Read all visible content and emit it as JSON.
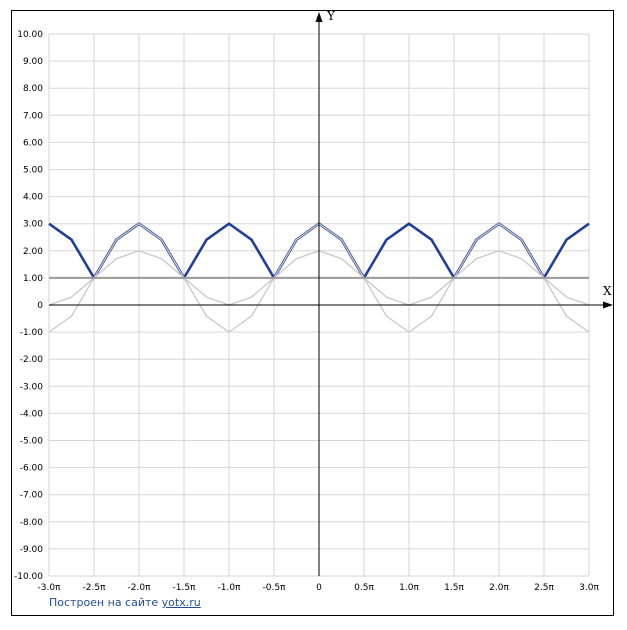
{
  "footer": {
    "prefix": "Построен на сайте",
    "link": "yotx.ru"
  },
  "chart_data": {
    "type": "line",
    "title": "",
    "xlabel": "X",
    "ylabel": "Y",
    "xlim": [
      -9.42478,
      9.42478
    ],
    "ylim": [
      -10,
      10
    ],
    "grid": true,
    "x_ticks": [
      {
        "v": -9.42478,
        "label": "-3.0π"
      },
      {
        "v": -7.85398,
        "label": "-2.5π"
      },
      {
        "v": -6.28319,
        "label": "-2.0π"
      },
      {
        "v": -4.71239,
        "label": "-1.5π"
      },
      {
        "v": -3.14159,
        "label": "-1.0π"
      },
      {
        "v": -1.5708,
        "label": "-0.5π"
      },
      {
        "v": 0,
        "label": "0"
      },
      {
        "v": 1.5708,
        "label": "0.5π"
      },
      {
        "v": 3.14159,
        "label": "1.0π"
      },
      {
        "v": 4.71239,
        "label": "1.5π"
      },
      {
        "v": 6.28319,
        "label": "2.0π"
      },
      {
        "v": 7.85398,
        "label": "2.5π"
      },
      {
        "v": 9.42478,
        "label": "3.0π"
      }
    ],
    "y_ticks": [
      {
        "v": 10,
        "label": "10.00"
      },
      {
        "v": 9,
        "label": "9.00"
      },
      {
        "v": 8,
        "label": "8.00"
      },
      {
        "v": 7,
        "label": "7.00"
      },
      {
        "v": 6,
        "label": "6.00"
      },
      {
        "v": 5,
        "label": "5.00"
      },
      {
        "v": 4,
        "label": "4.00"
      },
      {
        "v": 3,
        "label": "3.00"
      },
      {
        "v": 2,
        "label": "2.00"
      },
      {
        "v": 1,
        "label": "1.00"
      },
      {
        "v": 0,
        "label": "0"
      },
      {
        "v": -1,
        "label": "-1.00"
      },
      {
        "v": -2,
        "label": "-2.00"
      },
      {
        "v": -3,
        "label": "-3.00"
      },
      {
        "v": -4,
        "label": "-4.00"
      },
      {
        "v": -5,
        "label": "-5.00"
      },
      {
        "v": -6,
        "label": "-6.00"
      },
      {
        "v": -7,
        "label": "-7.00"
      },
      {
        "v": -8,
        "label": "-8.00"
      },
      {
        "v": -9,
        "label": "-9.00"
      },
      {
        "v": -10,
        "label": "-10.00"
      }
    ],
    "series": [
      {
        "color": "#1f3f9c",
        "x": [
          -9.42478,
          -8.63938,
          -7.85398,
          -7.06858,
          -6.28319,
          -5.49779,
          -4.71239,
          -3.92699,
          -3.14159,
          -2.35619,
          -1.5708,
          -0.7854,
          0,
          0.7854,
          1.5708,
          2.35619,
          3.14159,
          3.92699,
          4.71239,
          5.49779,
          6.28319,
          7.06858,
          7.85398,
          8.63938,
          9.42478
        ],
        "y": [
          3,
          2.41,
          1,
          2.41,
          3,
          2.41,
          1,
          2.41,
          3,
          2.41,
          1,
          2.41,
          3,
          2.41,
          1,
          2.41,
          3,
          2.41,
          1,
          2.41,
          3,
          2.41,
          1,
          2.41,
          3
        ]
      },
      {
        "color": "#c8c8c8",
        "x": [
          -9.42478,
          -8.63938,
          -7.85398,
          -7.06858,
          -6.28319,
          -5.49779,
          -4.71239,
          -3.92699,
          -3.14159,
          -2.35619,
          -1.5708,
          -0.7854,
          0,
          0.7854,
          1.5708,
          2.35619,
          3.14159,
          3.92699,
          4.71239,
          5.49779,
          6.28319,
          7.06858,
          7.85398,
          8.63938,
          9.42478
        ],
        "y": [
          -1,
          -0.41,
          1,
          2.41,
          3,
          2.41,
          1,
          -0.41,
          -1,
          -0.41,
          1,
          2.41,
          3,
          2.41,
          1,
          -0.41,
          -1,
          -0.41,
          1,
          2.41,
          3,
          2.41,
          1,
          -0.41,
          -1
        ]
      },
      {
        "color": "#c8c8c8",
        "x": [
          -9.42478,
          -8.63938,
          -7.85398,
          -7.06858,
          -6.28319,
          -5.49779,
          -4.71239,
          -3.92699,
          -3.14159,
          -2.35619,
          -1.5708,
          -0.7854,
          0,
          0.7854,
          1.5708,
          2.35619,
          3.14159,
          3.92699,
          4.71239,
          5.49779,
          6.28319,
          7.06858,
          7.85398,
          8.63938,
          9.42478
        ],
        "y": [
          0,
          0.29,
          1,
          1.71,
          2,
          1.71,
          1,
          0.29,
          0,
          0.29,
          1,
          1.71,
          2,
          1.71,
          1,
          0.29,
          0,
          0.29,
          1,
          1.71,
          2,
          1.71,
          1,
          0.29,
          0
        ]
      },
      {
        "color": "#999999",
        "x": [
          -9.42478,
          9.42478
        ],
        "y": [
          1,
          1
        ]
      }
    ]
  }
}
